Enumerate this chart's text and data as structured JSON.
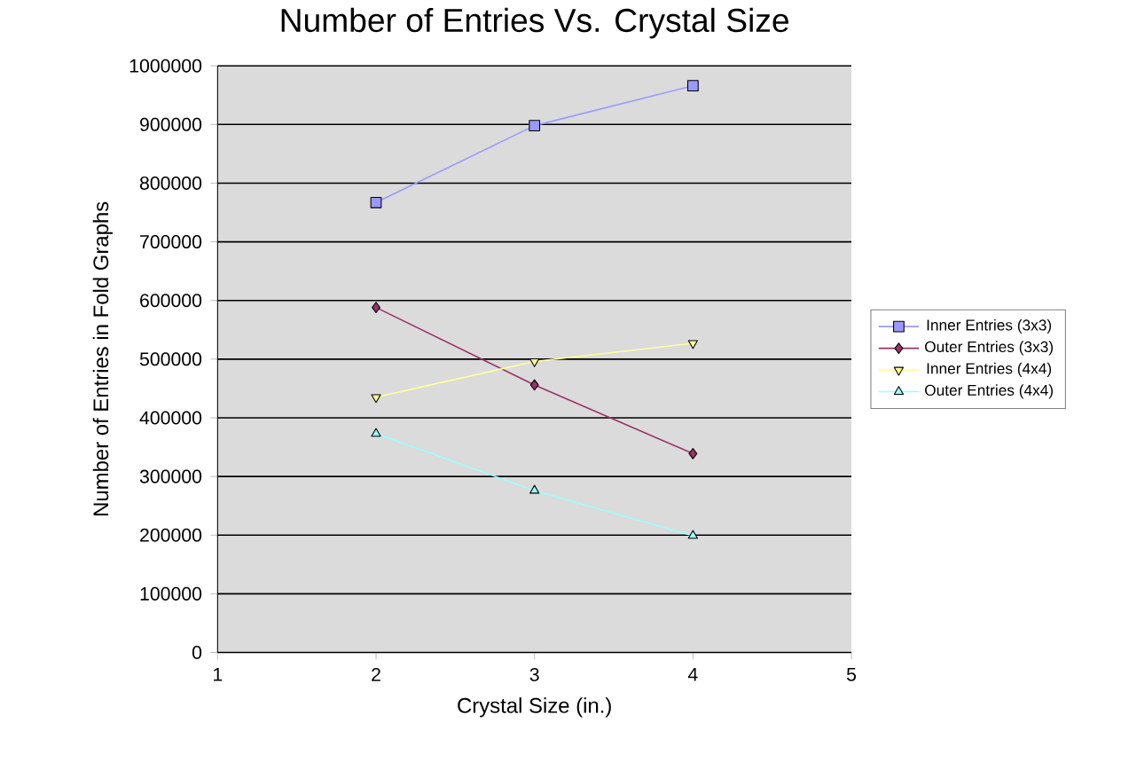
{
  "chart_data": {
    "type": "line",
    "title": "Number of Entries Vs. Crystal Size",
    "xlabel": "Crystal Size (in.)",
    "ylabel": "Number of Entries in Fold Graphs",
    "x": [
      2,
      3,
      4
    ],
    "series": [
      {
        "name": "Inner Entries (3x3)",
        "color": "#9999ff",
        "marker": "square",
        "values": [
          767000,
          898000,
          966000
        ]
      },
      {
        "name": "Outer Entries (3x3)",
        "color": "#993366",
        "marker": "diamond",
        "values": [
          588000,
          456000,
          339000
        ]
      },
      {
        "name": "Inner Entries (4x4)",
        "color": "#ffff99",
        "marker": "triangle-down",
        "values": [
          435000,
          496000,
          527000
        ]
      },
      {
        "name": "Outer Entries (4x4)",
        "color": "#99ffff",
        "marker": "triangle",
        "values": [
          373000,
          276000,
          199000
        ]
      }
    ],
    "xlim": [
      1,
      5
    ],
    "xticks": [
      1,
      2,
      3,
      4,
      5
    ],
    "ylim": [
      0,
      1000000
    ],
    "yticks": [
      0,
      100000,
      200000,
      300000,
      400000,
      500000,
      600000,
      700000,
      800000,
      900000,
      1000000
    ],
    "grid": "y",
    "legend": "right"
  }
}
